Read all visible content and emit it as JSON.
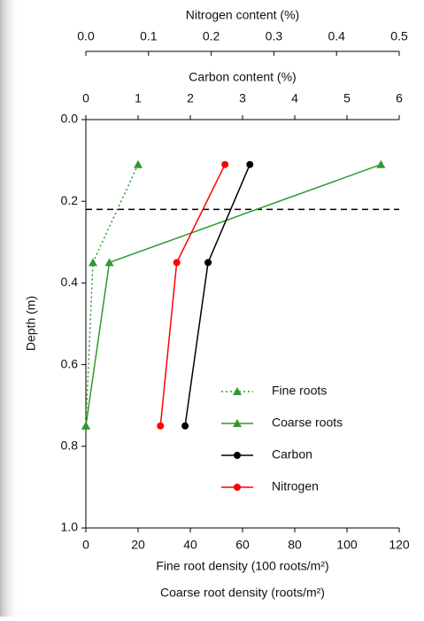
{
  "chart_data": {
    "type": "line",
    "ylabel": "Depth (m)",
    "ylim": [
      0,
      1
    ],
    "yinverted": true,
    "yticks": [
      {
        "value": 0,
        "label": "0.0"
      },
      0.2,
      0.4,
      0.6,
      0.8,
      {
        "value": 1,
        "label": "1.0"
      }
    ],
    "xlabel": "Fine root density (100 roots/m²)",
    "xlabel2": "Coarse root density (roots/m²)",
    "xlim": [
      0,
      120
    ],
    "xticks": [
      0,
      20,
      40,
      60,
      80,
      100,
      120
    ],
    "x2label": "Carbon content (%)",
    "x2lim": [
      0,
      6
    ],
    "x2ticks": [
      0,
      1,
      2,
      3,
      4,
      5,
      6
    ],
    "x3label": "Nitrogen content (%)",
    "x3lim": [
      0,
      0.5
    ],
    "x3ticks": [
      {
        "value": 0,
        "label": "0.0"
      },
      0.1,
      0.2,
      0.3,
      0.4,
      0.5
    ],
    "hline": 0.22,
    "legend": "lower right",
    "series": [
      {
        "name": "Fine roots",
        "color": "#2e9a2e",
        "marker": "triangle",
        "dash": "dotted",
        "axis": "x",
        "x": [
          20,
          2.7,
          0
        ],
        "y": [
          0.11,
          0.35,
          0.75
        ]
      },
      {
        "name": "Coarse roots",
        "color": "#2e9a2e",
        "marker": "triangle",
        "dash": "solid",
        "axis": "x",
        "x": [
          113,
          9,
          0
        ],
        "y": [
          0.11,
          0.35,
          0.75
        ]
      },
      {
        "name": "Carbon",
        "color": "#000000",
        "marker": "circle",
        "dash": "solid",
        "axis": "x2",
        "x": [
          3.14,
          2.34,
          1.9
        ],
        "y": [
          0.11,
          0.35,
          0.75
        ]
      },
      {
        "name": "Nitrogen",
        "color": "#ff0000",
        "marker": "circle",
        "dash": "solid",
        "axis": "x3",
        "x": [
          0.222,
          0.145,
          0.119
        ],
        "y": [
          0.11,
          0.35,
          0.75
        ]
      }
    ]
  }
}
